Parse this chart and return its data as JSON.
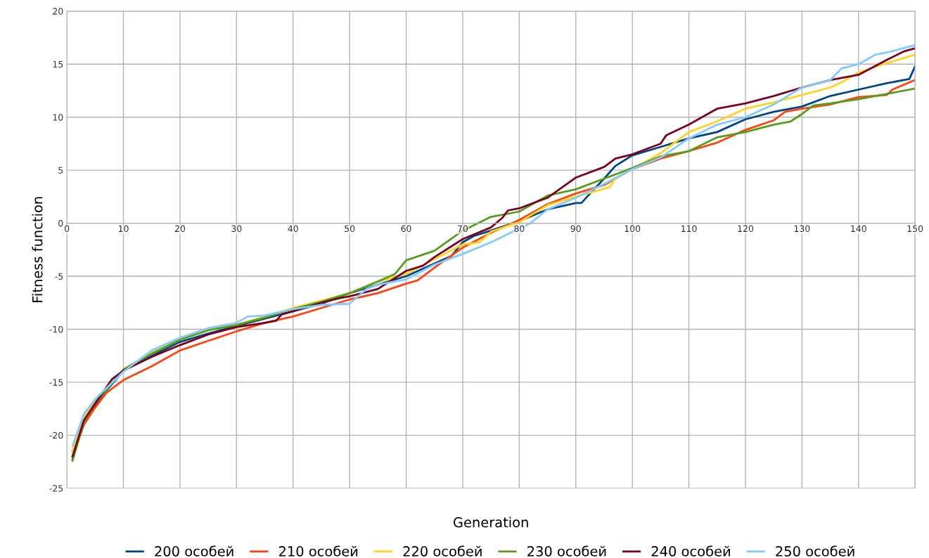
{
  "chart_data": {
    "type": "line",
    "xlabel": "Generation",
    "ylabel": "Fitness function",
    "xlim": [
      0,
      150
    ],
    "xticks": [
      0,
      10,
      20,
      30,
      40,
      50,
      60,
      70,
      80,
      90,
      100,
      110,
      120,
      130,
      140,
      150
    ],
    "ylim": [
      -25,
      20
    ],
    "yticks": [
      -25,
      -20,
      -15,
      -10,
      -5,
      0,
      5,
      10,
      15,
      20
    ],
    "grid": true,
    "legend": "bottom",
    "marker": "none",
    "line_style": "solid",
    "series": [
      {
        "name": "200 особей",
        "color": "#004586",
        "x": [
          1,
          2,
          3,
          5,
          7,
          10,
          15,
          20,
          25,
          30,
          35,
          40,
          45,
          50,
          55,
          60,
          65,
          68,
          70,
          72,
          75,
          80,
          85,
          90,
          91,
          92,
          95,
          97,
          100,
          105,
          110,
          115,
          120,
          125,
          130,
          135,
          140,
          145,
          149,
          150
        ],
        "values": [
          -22.3,
          -20.5,
          -19,
          -17.3,
          -15.8,
          -13.9,
          -12.5,
          -11.2,
          -10.4,
          -9.7,
          -9,
          -8.3,
          -7.6,
          -6.6,
          -5.8,
          -5,
          -3.8,
          -3.1,
          -1.8,
          -1.2,
          -0.7,
          0.2,
          1.3,
          1.9,
          1.9,
          2.5,
          4.2,
          5.4,
          6.4,
          7.2,
          8.0,
          8.6,
          9.8,
          10.5,
          11.0,
          12.0,
          12.6,
          13.2,
          13.6,
          14.8
        ]
      },
      {
        "name": "210 особей",
        "color": "#ff420e",
        "x": [
          1,
          3,
          5,
          7,
          10,
          15,
          20,
          25,
          30,
          35,
          40,
          45,
          50,
          55,
          60,
          62,
          65,
          70,
          75,
          80,
          85,
          90,
          95,
          100,
          105,
          110,
          115,
          120,
          125,
          127,
          130,
          135,
          140,
          145,
          146,
          150
        ],
        "values": [
          -22,
          -19,
          -17.4,
          -16,
          -14.8,
          -13.5,
          -12,
          -11.1,
          -10.2,
          -9.4,
          -8.8,
          -8,
          -7.2,
          -6.6,
          -5.7,
          -5.4,
          -4.2,
          -2.3,
          -0.9,
          0.3,
          1.8,
          2.8,
          3.6,
          5.1,
          6.1,
          6.8,
          7.6,
          8.8,
          9.7,
          10.5,
          10.8,
          11.2,
          11.9,
          12.1,
          12.6,
          13.5
        ]
      },
      {
        "name": "220 особей",
        "color": "#ffd320",
        "x": [
          1,
          3,
          5,
          10,
          15,
          20,
          25,
          30,
          35,
          40,
          45,
          50,
          55,
          60,
          65,
          70,
          73,
          75,
          80,
          85,
          90,
          96,
          97,
          100,
          105,
          110,
          115,
          120,
          125,
          130,
          135,
          137,
          140,
          145,
          150
        ],
        "values": [
          -21.5,
          -18.3,
          -16.8,
          -13.8,
          -12.2,
          -10.9,
          -10,
          -9.6,
          -8.8,
          -8,
          -7.3,
          -6.6,
          -5.5,
          -4.8,
          -3.4,
          -2,
          -1.8,
          -0.8,
          0.1,
          1.7,
          2.5,
          3.4,
          4.2,
          5.1,
          6.6,
          8.6,
          9.6,
          10.8,
          11.4,
          12.1,
          12.8,
          13.3,
          14.2,
          15.1,
          15.9
        ]
      },
      {
        "name": "230 особей",
        "color": "#579d1c",
        "x": [
          1,
          3,
          5,
          10,
          15,
          20,
          25,
          30,
          35,
          40,
          45,
          50,
          55,
          58,
          60,
          65,
          70,
          75,
          80,
          85,
          90,
          95,
          100,
          105,
          110,
          115,
          120,
          125,
          128,
          130,
          132,
          135,
          140,
          145,
          150
        ],
        "values": [
          -22.4,
          -18.8,
          -17,
          -13.8,
          -12.3,
          -11,
          -10.1,
          -9.6,
          -8.9,
          -8.1,
          -7.4,
          -6.6,
          -5.5,
          -4.8,
          -3.5,
          -2.6,
          -0.7,
          0.6,
          1.1,
          2.6,
          3.2,
          4.2,
          5.2,
          6.3,
          6.8,
          8.1,
          8.6,
          9.3,
          9.6,
          10.3,
          11.1,
          11.3,
          11.7,
          12.2,
          12.7
        ]
      },
      {
        "name": "240 особей",
        "color": "#7e0021",
        "x": [
          1,
          3,
          5,
          8,
          10,
          15,
          20,
          25,
          30,
          35,
          37,
          38,
          40,
          45,
          48,
          50,
          55,
          60,
          63,
          65,
          70,
          75,
          77,
          78,
          80,
          85,
          90,
          95,
          97,
          100,
          105,
          106,
          110,
          115,
          120,
          125,
          130,
          135,
          140,
          145,
          148,
          150
        ],
        "values": [
          -22,
          -18.6,
          -17,
          -14.7,
          -13.9,
          -12.6,
          -11.5,
          -10.5,
          -9.8,
          -9.4,
          -9.2,
          -8.6,
          -8.3,
          -7.5,
          -7.1,
          -6.9,
          -6.2,
          -4.5,
          -4,
          -3.2,
          -1.5,
          -0.4,
          0.5,
          1.2,
          1.4,
          2.4,
          4.3,
          5.3,
          6.1,
          6.5,
          7.5,
          8.3,
          9.3,
          10.8,
          11.3,
          12.0,
          12.8,
          13.5,
          14.0,
          15.4,
          16.2,
          16.5
        ]
      },
      {
        "name": "250 особей",
        "color": "#83caff",
        "x": [
          1,
          3,
          5,
          10,
          15,
          20,
          25,
          30,
          32,
          35,
          40,
          45,
          50,
          53,
          55,
          60,
          65,
          70,
          75,
          80,
          82,
          85,
          90,
          95,
          100,
          105,
          110,
          115,
          120,
          125,
          130,
          135,
          137,
          140,
          143,
          145,
          150
        ],
        "values": [
          -21,
          -18,
          -16.6,
          -14,
          -12,
          -10.8,
          -9.9,
          -9.4,
          -8.8,
          -8.7,
          -8.1,
          -7.7,
          -7.6,
          -6.2,
          -5.8,
          -5.3,
          -3.9,
          -2.9,
          -1.8,
          -0.5,
          0,
          1.3,
          2.4,
          3.7,
          5.1,
          6.2,
          8.0,
          9.3,
          10.0,
          11.2,
          12.8,
          13.5,
          14.6,
          15.0,
          15.9,
          16.1,
          16.8
        ]
      }
    ]
  }
}
